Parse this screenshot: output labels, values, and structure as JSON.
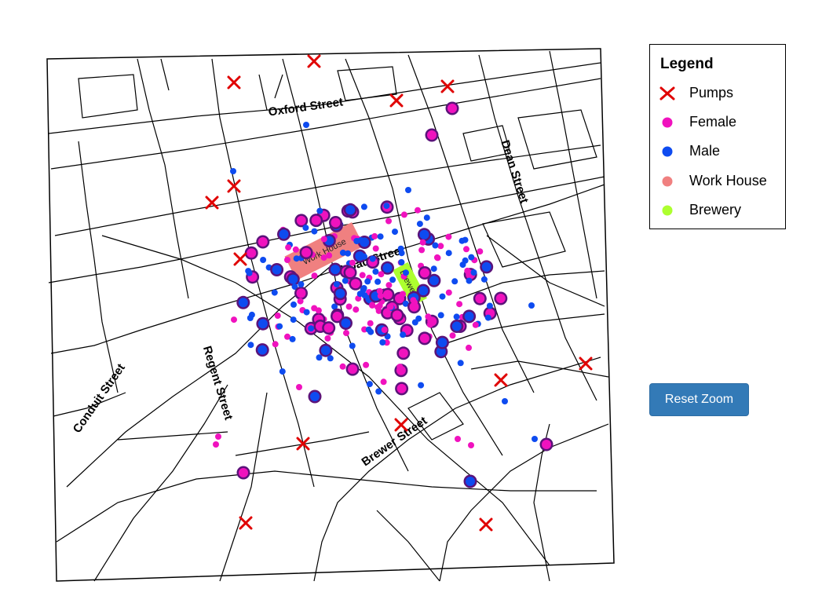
{
  "map": {
    "streets": [
      {
        "label": "Oxford Street"
      },
      {
        "label": "Dean Street"
      },
      {
        "label": "Broad Street"
      },
      {
        "label": "Regent Street"
      },
      {
        "label": "Conduit Street"
      },
      {
        "label": "Brewer Street"
      }
    ],
    "buildings": {
      "workhouse_label": "Work House",
      "brewery_label": "Brewery"
    },
    "colors": {
      "pump": "#e00000",
      "female": "#f012be",
      "male": "#0e4bf0",
      "death_ring": "#5b137a",
      "workhouse": "#f08080",
      "brewery": "#adff2f",
      "street": "#000000"
    },
    "pump_count": 13
  },
  "legend": {
    "title": "Legend",
    "items": [
      {
        "label": "Pumps",
        "icon": "pump-cross-icon"
      },
      {
        "label": "Female",
        "icon": "female-dot-icon"
      },
      {
        "label": "Male",
        "icon": "male-dot-icon"
      },
      {
        "label": "Work House",
        "icon": "workhouse-swatch-icon"
      },
      {
        "label": "Brewery",
        "icon": "brewery-swatch-icon"
      }
    ]
  },
  "controls": {
    "reset_zoom_label": "Reset Zoom"
  }
}
